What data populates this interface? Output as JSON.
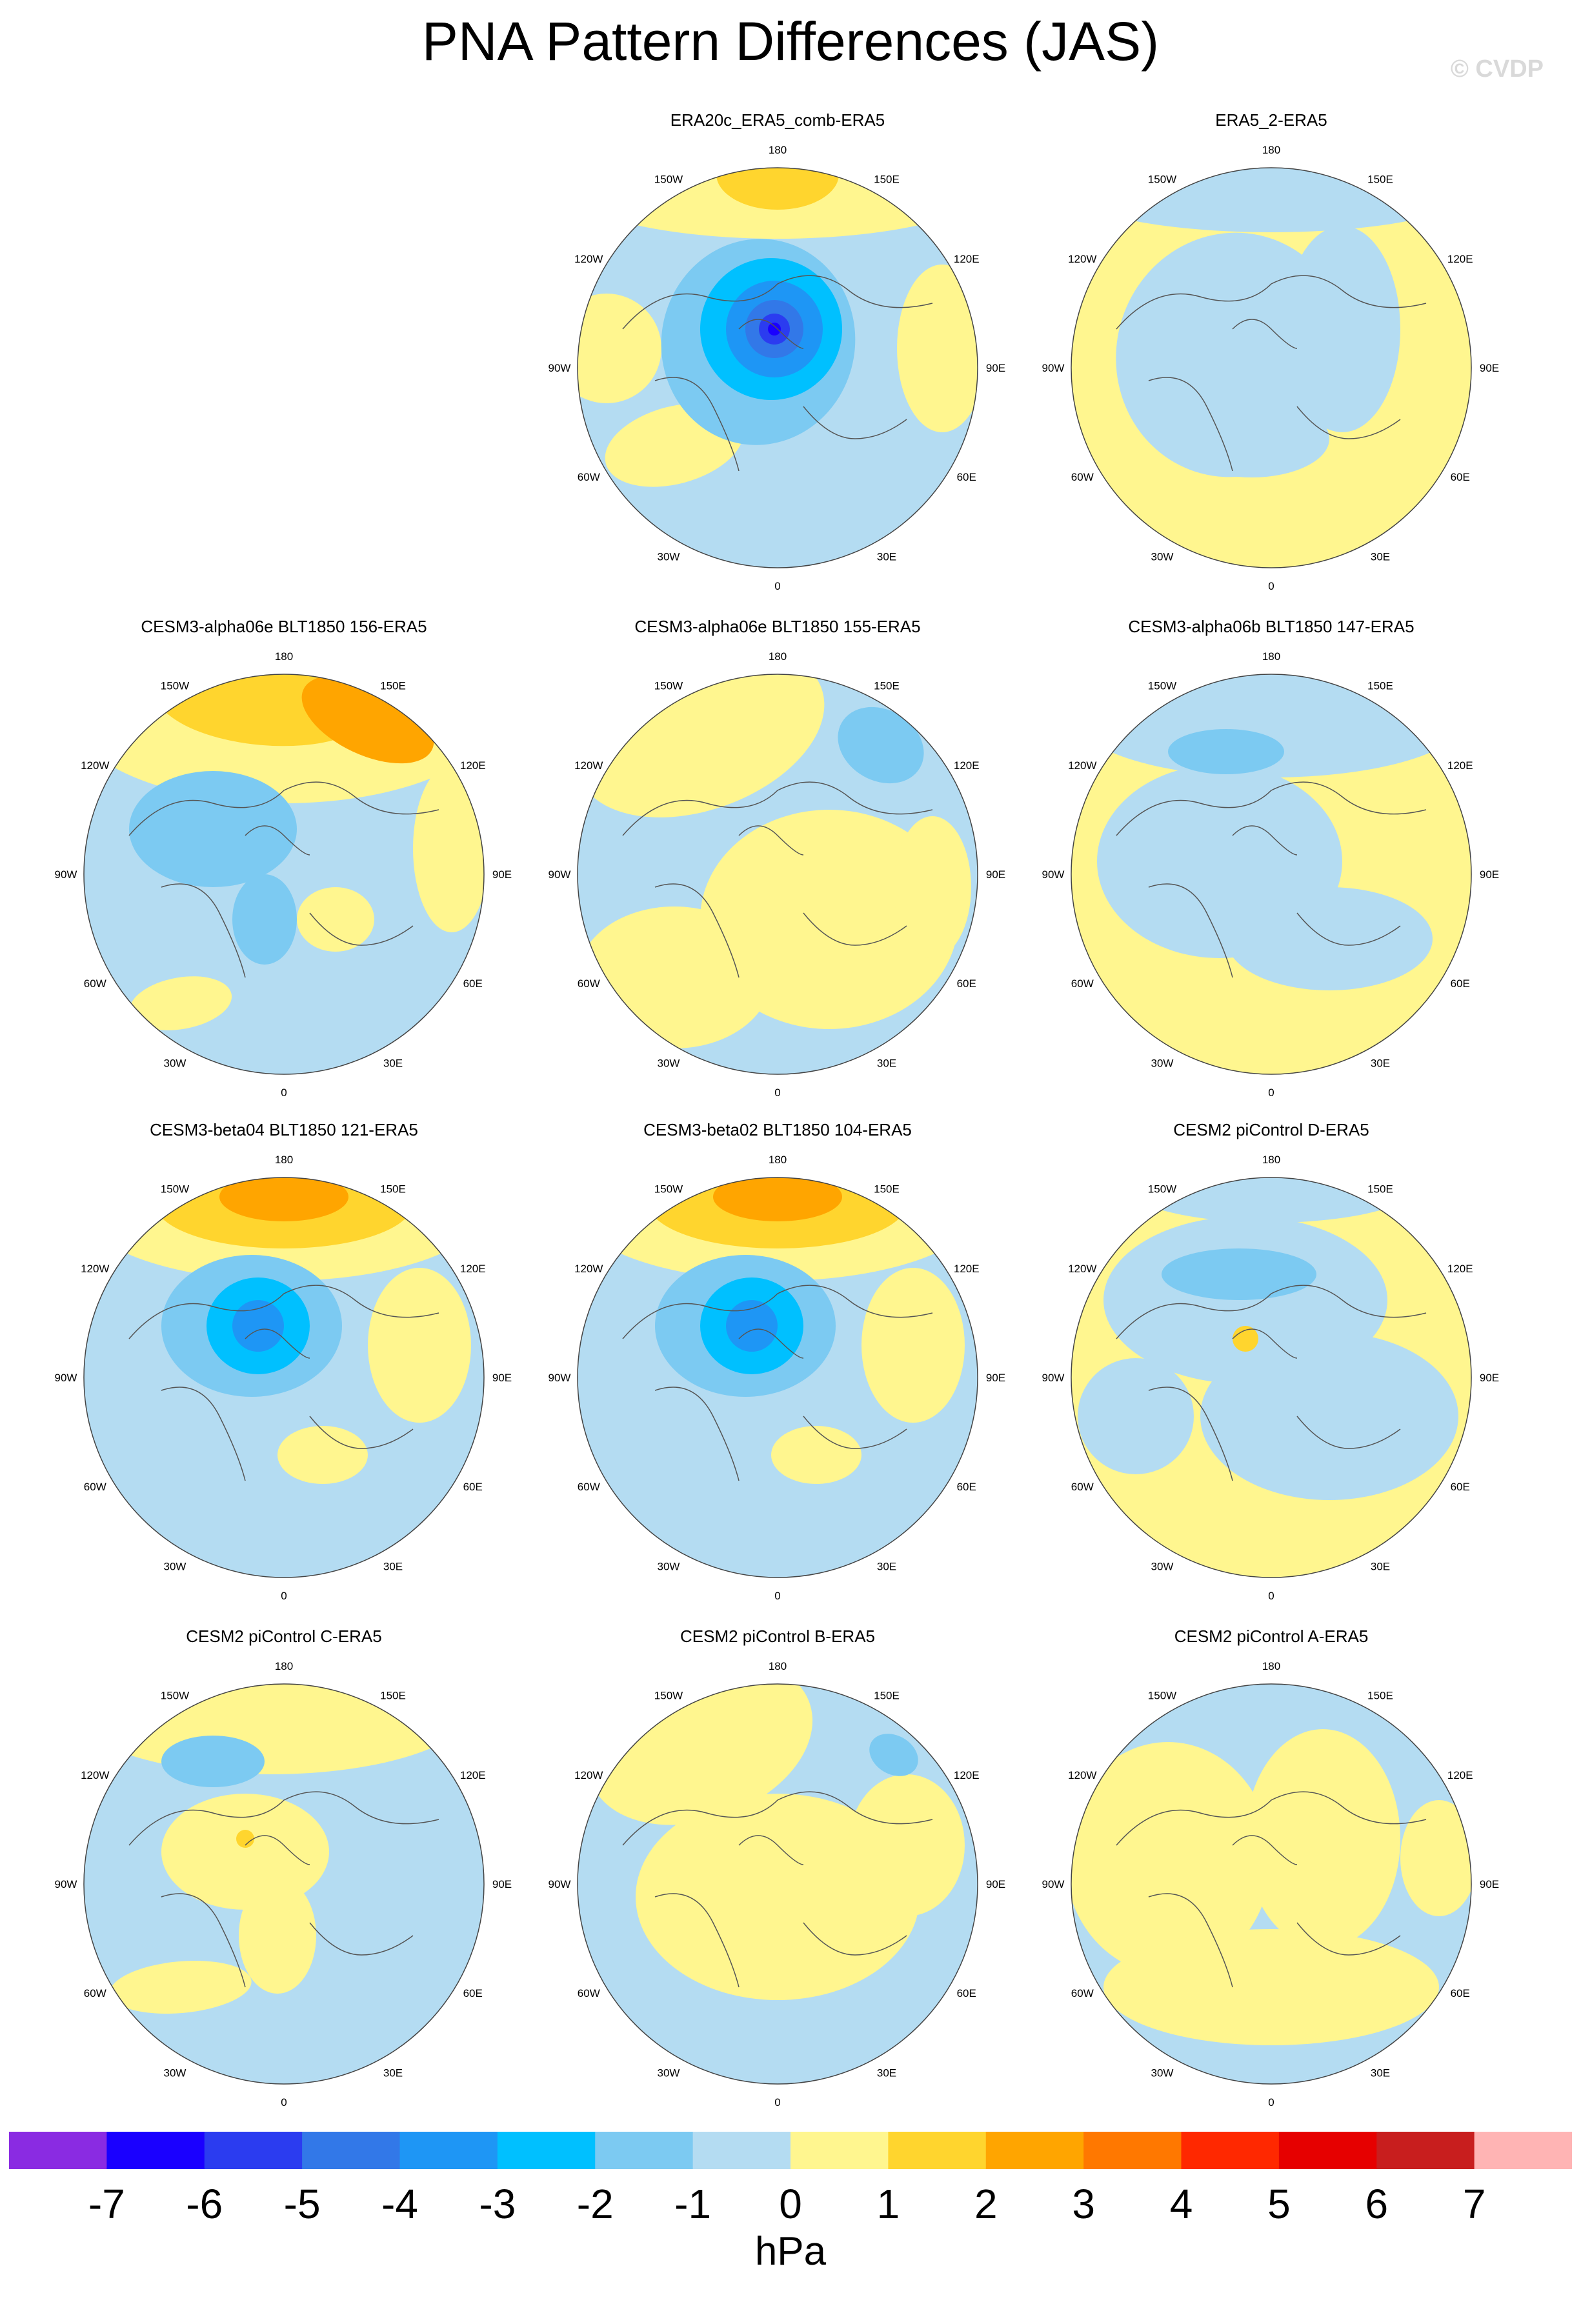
{
  "title": "PNA Pattern Differences (JAS)",
  "watermark": "© CVDP",
  "longitude_labels": [
    "180",
    "150E",
    "120E",
    "90E",
    "60E",
    "30E",
    "0",
    "30W",
    "60W",
    "90W",
    "120W",
    "150W"
  ],
  "panels": [
    {
      "title": "",
      "empty": true
    },
    {
      "title": "ERA20c_ERA5_comb-ERA5",
      "theme": "strong-low"
    },
    {
      "title": "ERA5_2-ERA5",
      "theme": "weak-mixed"
    },
    {
      "title": "CESM3-alpha06e BLT1850 156-ERA5",
      "theme": "high-pacific"
    },
    {
      "title": "CESM3-alpha06e BLT1850 155-ERA5",
      "theme": "mixed"
    },
    {
      "title": "CESM3-alpha06b BLT1850 147-ERA5",
      "theme": "mixed-b"
    },
    {
      "title": "CESM3-beta04 BLT1850 121-ERA5",
      "theme": "high-pacific-low"
    },
    {
      "title": "CESM3-beta02 BLT1850 104-ERA5",
      "theme": "high-pacific-low"
    },
    {
      "title": "CESM2 piControl D-ERA5",
      "theme": "mixed-c"
    },
    {
      "title": "CESM2 piControl C-ERA5",
      "theme": "mixed-d"
    },
    {
      "title": "CESM2 piControl B-ERA5",
      "theme": "mixed-e"
    },
    {
      "title": "CESM2 piControl A-ERA5",
      "theme": "mixed-f"
    }
  ],
  "colorbar": {
    "unit": "hPa",
    "ticks": [
      "-7",
      "-6",
      "-5",
      "-4",
      "-3",
      "-2",
      "-1",
      "0",
      "1",
      "2",
      "3",
      "4",
      "5",
      "6",
      "7"
    ],
    "colors": [
      "#8a2be2",
      "#1a00ff",
      "#2b3cf0",
      "#3278e8",
      "#1e96f5",
      "#00c0ff",
      "#7ccaf2",
      "#b4dcf2",
      "#fff68f",
      "#ffd52e",
      "#ffa500",
      "#ff7800",
      "#ff2800",
      "#e60000",
      "#c81e1e",
      "#ffb4b4"
    ]
  }
}
